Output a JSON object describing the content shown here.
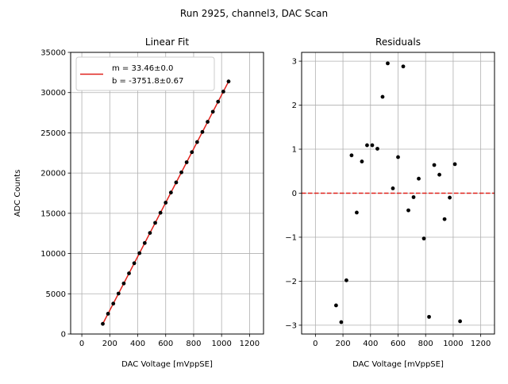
{
  "colors": {
    "fit_line": "#e0211b",
    "points": "#000000",
    "zero_line": "#e0211b",
    "grid": "#b0b0b0"
  },
  "suptitle": "Run 2925, channel3, DAC Scan",
  "chart_data": [
    {
      "type": "scatter",
      "title": "Linear Fit",
      "xlabel": "DAC Voltage [mVppSE]",
      "ylabel": "ADC Counts",
      "xlim": [
        -80,
        1300
      ],
      "ylim": [
        0,
        35000
      ],
      "xticks": [
        0,
        200,
        400,
        600,
        800,
        1000,
        1200
      ],
      "yticks": [
        0,
        5000,
        10000,
        15000,
        20000,
        25000,
        30000,
        35000
      ],
      "grid": true,
      "legend": {
        "placement": "top-left",
        "line1": "m = 33.46±0.0",
        "line2": "b = -3751.8±0.67"
      },
      "fit": {
        "slope": 33.46,
        "intercept": -3751.8,
        "x_range": [
          150,
          1050
        ]
      },
      "x": [
        150,
        187.5,
        225,
        262.5,
        300,
        337.5,
        375,
        412.5,
        450,
        487.5,
        525,
        562.5,
        600,
        637.5,
        675,
        712.5,
        750,
        787.5,
        825,
        862.5,
        900,
        937.5,
        975,
        1012.5,
        1050
      ],
      "y": [
        1265,
        2520,
        3775,
        5030,
        6285,
        7540,
        8795,
        10050,
        11305,
        12560,
        13815,
        15070,
        16325,
        17580,
        18835,
        20090,
        21345,
        22600,
        23855,
        25110,
        26365,
        27620,
        28875,
        30130,
        31385
      ]
    },
    {
      "type": "scatter",
      "title": "Residuals",
      "xlabel": "DAC Voltage [mVppSE]",
      "ylabel": "",
      "xlim": [
        -100,
        1300
      ],
      "ylim": [
        -3.2,
        3.2
      ],
      "xticks": [
        0,
        200,
        400,
        600,
        800,
        1000,
        1200
      ],
      "yticks": [
        -3,
        -2,
        -1,
        0,
        1,
        2,
        3
      ],
      "grid": true,
      "zero_line": 0,
      "x": [
        150,
        187.5,
        225,
        262.5,
        300,
        337.5,
        375,
        412.5,
        450,
        487.5,
        525,
        562.5,
        600,
        637.5,
        675,
        712.5,
        750,
        787.5,
        825,
        862.5,
        900,
        937.5,
        975,
        1012.5,
        1050
      ],
      "y": [
        -2.55,
        -2.93,
        -1.98,
        0.86,
        -0.44,
        0.72,
        1.09,
        1.09,
        1.01,
        2.19,
        2.95,
        0.11,
        0.82,
        2.88,
        -0.39,
        -0.09,
        0.33,
        -1.03,
        -2.81,
        0.64,
        0.42,
        -0.59,
        -0.1,
        0.66,
        -2.91
      ]
    }
  ]
}
